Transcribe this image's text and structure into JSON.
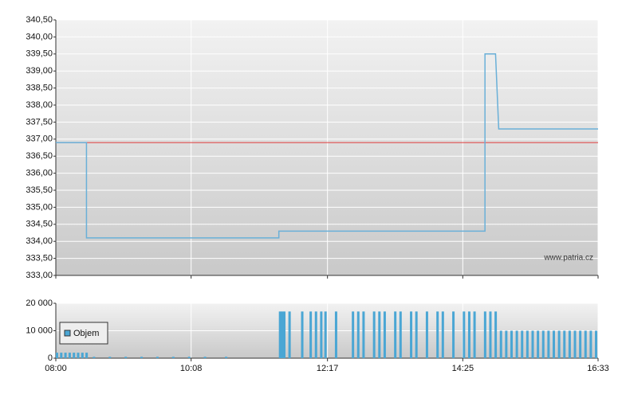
{
  "chart_data": [
    {
      "type": "line",
      "xlim": [
        "08:00",
        "16:33"
      ],
      "ylim": [
        333,
        340.5
      ],
      "yticks": [
        {
          "value": 333,
          "label": "333,00"
        },
        {
          "value": 333.5,
          "label": "333,50"
        },
        {
          "value": 334,
          "label": "334,00"
        },
        {
          "value": 334.5,
          "label": "334,50"
        },
        {
          "value": 335,
          "label": "335,00"
        },
        {
          "value": 335.5,
          "label": "335,50"
        },
        {
          "value": 336,
          "label": "336,00"
        },
        {
          "value": 336.5,
          "label": "336,50"
        },
        {
          "value": 337,
          "label": "337,00"
        },
        {
          "value": 337.5,
          "label": "337,50"
        },
        {
          "value": 338,
          "label": "338,00"
        },
        {
          "value": 338.5,
          "label": "338,50"
        },
        {
          "value": 339,
          "label": "339,00"
        },
        {
          "value": 339.5,
          "label": "339,50"
        },
        {
          "value": 340,
          "label": "340,00"
        },
        {
          "value": 340.5,
          "label": "340,50"
        }
      ],
      "x": [
        "08:00",
        "08:29",
        "08:29",
        "11:31",
        "11:31",
        "14:46",
        "14:46",
        "14:56",
        "14:59",
        "16:33"
      ],
      "values": [
        336.9,
        336.9,
        334.1,
        334.1,
        334.3,
        334.3,
        339.5,
        339.5,
        337.3,
        337.3
      ],
      "color": "#6ab0d8",
      "reference": {
        "value": 336.9,
        "color": "#e03a3a"
      },
      "grid": true,
      "annotation": "www.patria.cz"
    },
    {
      "type": "bar",
      "xlim": [
        "08:00",
        "16:33"
      ],
      "ylim": [
        0,
        20000
      ],
      "xticks": [
        "08:00",
        "10:08",
        "12:17",
        "14:25",
        "16:33"
      ],
      "yticks": [
        0,
        {
          "value": 10000,
          "label": "10 000"
        },
        {
          "value": 20000,
          "label": "20 000"
        }
      ],
      "x": [
        "08:00",
        "08:04",
        "08:08",
        "08:12",
        "08:16",
        "08:20",
        "08:24",
        "08:28",
        "08:35",
        "08:50",
        "09:05",
        "09:20",
        "09:35",
        "09:50",
        "10:05",
        "10:20",
        "10:40",
        "11:31",
        "11:33",
        "11:35",
        "11:40",
        "11:52",
        "12:00",
        "12:05",
        "12:10",
        "12:14",
        "12:24",
        "12:40",
        "12:45",
        "12:50",
        "13:00",
        "13:05",
        "13:10",
        "13:20",
        "13:25",
        "13:35",
        "13:40",
        "13:50",
        "14:00",
        "14:05",
        "14:15",
        "14:25",
        "14:30",
        "14:35",
        "14:45",
        "14:50",
        "14:55",
        "15:00",
        "15:05",
        "15:10",
        "15:15",
        "15:20",
        "15:25",
        "15:30",
        "15:35",
        "15:40",
        "15:45",
        "15:50",
        "15:55",
        "16:00",
        "16:05",
        "16:10",
        "16:15",
        "16:20",
        "16:25",
        "16:30"
      ],
      "series": [
        {
          "name": "Objem",
          "color": "#4aa6d4",
          "values": [
            2000,
            2000,
            2000,
            2000,
            2000,
            2000,
            2000,
            2000,
            500,
            500,
            500,
            500,
            500,
            500,
            500,
            500,
            500,
            17000,
            17000,
            17000,
            17000,
            17000,
            17000,
            17000,
            17000,
            17000,
            17000,
            17000,
            17000,
            17000,
            17000,
            17000,
            17000,
            17000,
            17000,
            17000,
            17000,
            17000,
            17000,
            17000,
            17000,
            17000,
            17000,
            17000,
            17000,
            17000,
            17000,
            10000,
            10000,
            10000,
            10000,
            10000,
            10000,
            10000,
            10000,
            10000,
            10000,
            10000,
            10000,
            10000,
            10000,
            10000,
            10000,
            10000,
            10000,
            10000
          ]
        }
      ],
      "grid": true,
      "legend": "bottom-left"
    }
  ]
}
